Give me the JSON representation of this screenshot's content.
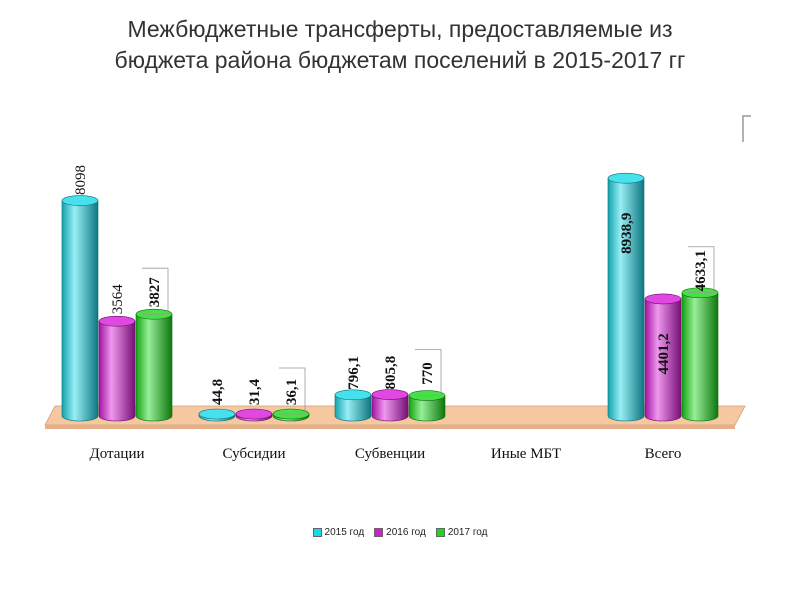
{
  "chart_data": {
    "type": "bar",
    "title": "Межбюджетные трансферты, предоставляемые из\nбюджета района бюджетам поселений в 2015-2017 гг",
    "categories": [
      "Дотации",
      "Субсидии",
      "Субвенции",
      "Иные МБТ",
      "Всего"
    ],
    "series": [
      {
        "name": "2015 год",
        "color": "#19D9E8",
        "values": [
          8098,
          44.8,
          796.1,
          null,
          8938.9
        ],
        "labels": [
          "8098",
          "44,8",
          "796,1",
          "",
          "8938,9"
        ]
      },
      {
        "name": "2016 год",
        "color": "#D919D9",
        "values": [
          3564,
          31.4,
          805.8,
          null,
          4401.2
        ],
        "labels": [
          "3564",
          "31,4",
          "805,8",
          "",
          "4401,2"
        ]
      },
      {
        "name": "2017 год",
        "color": "#19D919",
        "values": [
          3827,
          36.1,
          770,
          null,
          4633.1
        ],
        "labels": [
          "3827",
          "36,1",
          "770",
          "",
          "4633,1"
        ]
      }
    ],
    "xlabel": "",
    "ylabel": "",
    "ylim": [
      0,
      10000
    ],
    "grid": false,
    "legend_position": "bottom",
    "floor_color": "#F5C8A0"
  }
}
